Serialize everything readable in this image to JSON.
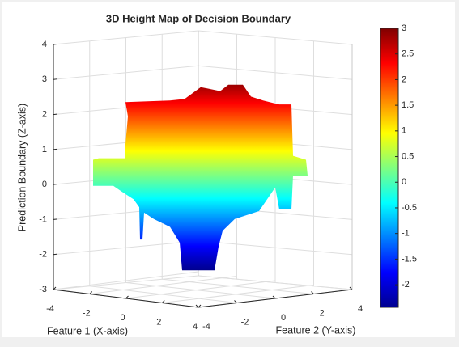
{
  "chart_data": {
    "type": "surface",
    "title": "3D Height Map of Decision Boundary",
    "xlabel": "Feature 1 (X-axis)",
    "ylabel": "Feature 2 (Y-axis)",
    "zlabel": "Prediction Boundary (Z-axis)",
    "xlim": [
      -4,
      4
    ],
    "xticks": [
      -4,
      -2,
      0,
      2,
      4
    ],
    "ylim": [
      -4,
      4
    ],
    "yticks": [
      -4,
      -2,
      0,
      2,
      4
    ],
    "zlim": [
      -3,
      4
    ],
    "zticks": [
      -3,
      -2,
      -1,
      0,
      1,
      2,
      3,
      4
    ],
    "surface": {
      "min": -2.45,
      "max": 2.85
    },
    "colormap": "jet",
    "clim": [
      -2.44,
      3
    ],
    "colorbar_ticks": [
      -2,
      -1.5,
      -1,
      -0.5,
      0,
      0.5,
      1,
      1.5,
      2,
      2.5,
      3
    ],
    "grid": true
  }
}
